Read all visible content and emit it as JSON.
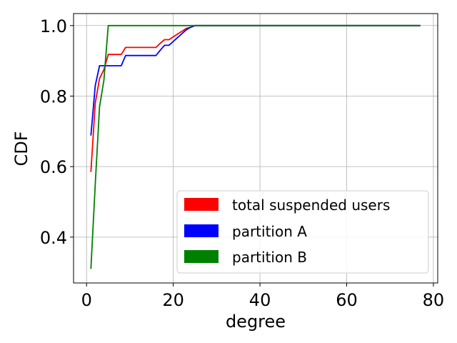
{
  "chart_data": {
    "type": "line",
    "title": "",
    "xlabel": "degree",
    "ylabel": "CDF",
    "xlim": [
      -3,
      81
    ],
    "ylim": [
      0.27,
      1.034
    ],
    "xticks": [
      0,
      20,
      40,
      60,
      80
    ],
    "yticks": [
      0.4,
      0.6,
      0.8,
      1.0
    ],
    "xtick_labels": [
      "0",
      "20",
      "40",
      "60",
      "80"
    ],
    "ytick_labels": [
      "0.4",
      "0.6",
      "0.8",
      "1.0"
    ],
    "grid": true,
    "legend_position": "lower-right",
    "series": [
      {
        "name": "total suspended users",
        "color": "#ff0000",
        "x": [
          1,
          2,
          3,
          4,
          5,
          6,
          7,
          8,
          9,
          10,
          12,
          14,
          16,
          17,
          18,
          19,
          20,
          21,
          22,
          23,
          24,
          25,
          30,
          40,
          50,
          60,
          77
        ],
        "y": [
          0.585,
          0.78,
          0.85,
          0.875,
          0.918,
          0.918,
          0.918,
          0.918,
          0.938,
          0.938,
          0.938,
          0.938,
          0.938,
          0.95,
          0.96,
          0.96,
          0.968,
          0.976,
          0.984,
          0.992,
          0.995,
          1.0,
          1.0,
          1.0,
          1.0,
          1.0,
          1.0
        ]
      },
      {
        "name": "partition A",
        "color": "#0000ff",
        "x": [
          1,
          2,
          3,
          4,
          5,
          6,
          7,
          8,
          9,
          10,
          12,
          14,
          16,
          17,
          18,
          19,
          20,
          21,
          22,
          23,
          24,
          25,
          30,
          40,
          50,
          60,
          77
        ],
        "y": [
          0.688,
          0.83,
          0.886,
          0.886,
          0.886,
          0.886,
          0.886,
          0.886,
          0.915,
          0.915,
          0.915,
          0.915,
          0.915,
          0.93,
          0.944,
          0.944,
          0.955,
          0.966,
          0.977,
          0.988,
          0.995,
          1.0,
          1.0,
          1.0,
          1.0,
          1.0,
          1.0
        ]
      },
      {
        "name": "partition B",
        "color": "#008000",
        "x": [
          1,
          2,
          3,
          4,
          5,
          6,
          10,
          20,
          30,
          40,
          50,
          60,
          77
        ],
        "y": [
          0.31,
          0.55,
          0.77,
          0.845,
          1.0,
          1.0,
          1.0,
          1.0,
          1.0,
          1.0,
          1.0,
          1.0,
          1.0
        ]
      }
    ]
  }
}
